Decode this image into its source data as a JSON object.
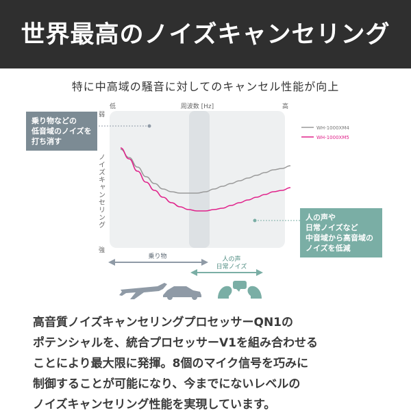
{
  "header": {
    "title": "世界最高のノイズキャンセリング"
  },
  "subtitle": "特に中高域の騒音に対してのキャンセル性能が向上",
  "callouts": {
    "left": [
      "乗り物などの",
      "低音域のノイズを",
      "打ち消す"
    ],
    "right": [
      "人の声や",
      "日常ノイズなど",
      "中音域から高音域の",
      "ノイズを低減"
    ]
  },
  "ranges": {
    "vehicle": "乗り物",
    "voice": [
      "人の声",
      "日常ノイズ"
    ]
  },
  "icons": [
    "airplane-icon",
    "car-icon",
    "people-talking-icon"
  ],
  "colors": {
    "banner": "#2f2f2f",
    "xm4": "#9a9a9a",
    "xm5": "#e0218a",
    "vehicle_arrow": "#8f9aa6",
    "voice_arrow": "#7aaea5",
    "callout_left": "#7c8b94",
    "callout_right": "#7aaea5"
  },
  "chart_data": {
    "type": "line",
    "xlabel": "周波数 [Hz]",
    "ylabel": "ノイズキャンセリング",
    "x_ticks": [
      "低",
      "高"
    ],
    "y_ticks": [
      "弱",
      "強"
    ],
    "xlim": [
      0,
      10
    ],
    "ylim": [
      0,
      10
    ],
    "legend_position": "top-right",
    "x": [
      0,
      0.5,
      1,
      1.5,
      2,
      2.5,
      3,
      3.5,
      4,
      4.5,
      5,
      5.5,
      6,
      6.5,
      7,
      7.5,
      8,
      8.5,
      9,
      9.5,
      10
    ],
    "series": [
      {
        "name": "WH-1000XM4",
        "color": "#9a9a9a",
        "values": [
          7.2,
          6.6,
          5.9,
          5.2,
          4.7,
          4.3,
          4.1,
          4.0,
          4.0,
          4.0,
          4.1,
          4.3,
          4.5,
          4.7,
          4.9,
          5.1,
          5.3,
          5.5,
          5.7,
          5.8,
          6.0
        ]
      },
      {
        "name": "WH-1000XM5",
        "color": "#e0218a",
        "values": [
          7.3,
          6.5,
          5.6,
          4.8,
          4.2,
          3.7,
          3.3,
          3.0,
          2.8,
          2.7,
          2.7,
          2.8,
          2.9,
          3.1,
          3.3,
          3.5,
          3.7,
          3.9,
          4.1,
          4.2,
          4.4
        ]
      }
    ]
  },
  "body_lines": [
    "高音質ノイズキャンセリングプロセッサーQN1の",
    "ポテンシャルを、統合プロセッサーV1を組み合わせる",
    "ことにより最大限に発揮。8個のマイク信号を巧みに",
    "制御することが可能になり、今までにないレベルの",
    "ノイズキャンセリング性能を実現しています。"
  ]
}
